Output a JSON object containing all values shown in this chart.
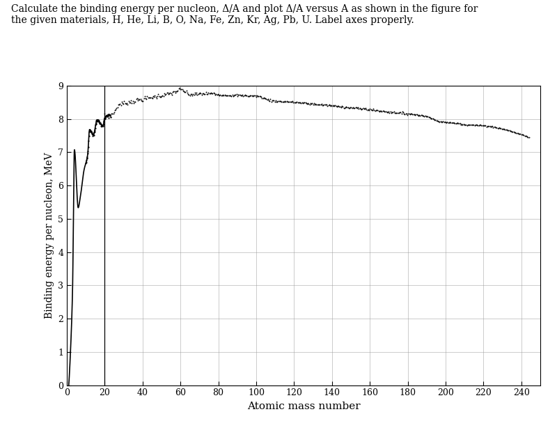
{
  "title_text": "Calculate the binding energy per nucleon, Δ/A and plot Δ/A versus A as shown in the figure for\nthe given materials, H, He, Li, B, O, Na, Fe, Zn, Kr, Ag, Pb, U. Label axes properly.",
  "xlabel": "Atomic mass number",
  "ylabel": "Binding energy per nucleon, MeV",
  "xlim": [
    0,
    250
  ],
  "ylim": [
    0,
    9
  ],
  "xticks": [
    0,
    20,
    40,
    60,
    80,
    100,
    120,
    140,
    160,
    180,
    200,
    220,
    240
  ],
  "yticks": [
    0,
    1,
    2,
    3,
    4,
    5,
    6,
    7,
    8,
    9
  ],
  "background_color": "#ffffff",
  "grid_color": "#999999",
  "figsize": [
    8.0,
    6.14
  ],
  "dpi": 100,
  "curve_points_low": {
    "A": [
      1,
      2,
      3,
      4,
      6,
      7,
      9,
      11,
      12,
      14,
      16,
      19,
      20,
      23
    ],
    "BE": [
      0.0,
      1.112,
      2.827,
      7.074,
      5.332,
      5.606,
      6.442,
      6.928,
      7.681,
      7.52,
      7.976,
      7.779,
      8.033,
      8.112
    ]
  },
  "curve_points_high": [
    [
      20,
      8.112
    ],
    [
      23,
      8.112
    ],
    [
      28,
      8.447
    ],
    [
      32,
      8.493
    ],
    [
      40,
      8.595
    ],
    [
      56,
      8.79
    ],
    [
      60,
      8.88
    ],
    [
      65,
      8.736
    ],
    [
      75,
      8.76
    ],
    [
      84,
      8.718
    ],
    [
      90,
      8.71
    ],
    [
      100,
      8.69
    ],
    [
      108,
      8.553
    ],
    [
      120,
      8.504
    ],
    [
      130,
      8.45
    ],
    [
      140,
      8.402
    ],
    [
      150,
      8.34
    ],
    [
      160,
      8.282
    ],
    [
      170,
      8.21
    ],
    [
      180,
      8.155
    ],
    [
      190,
      8.08
    ],
    [
      197,
      7.917
    ],
    [
      200,
      7.9
    ],
    [
      207,
      7.867
    ],
    [
      209,
      7.834
    ],
    [
      220,
      7.8
    ],
    [
      238,
      7.57
    ]
  ],
  "vline_x": 20
}
